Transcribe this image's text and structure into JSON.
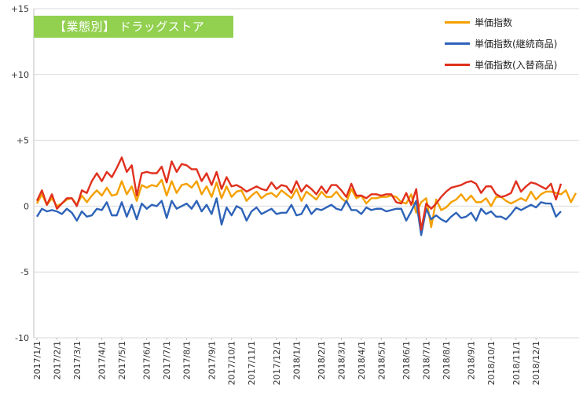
{
  "chart_data": {
    "type": "line",
    "title": "【業態別】 ドラッグストア",
    "xlabel": "",
    "ylabel": "",
    "ylim": [
      -10,
      15
    ],
    "yticks": [
      -10,
      -5,
      0,
      5,
      10,
      15
    ],
    "ytick_labels": [
      "-10",
      "-5",
      "0",
      "+5",
      "+10",
      "+15"
    ],
    "grid": "horizontal",
    "legend_position": "top-right",
    "x_start": "2017/1/1",
    "x_interval": "weekly",
    "xtick_labels": [
      "2017/1/1",
      "2017/2/1",
      "2017/3/1",
      "2017/4/1",
      "2017/5/1",
      "2017/6/1",
      "2017/7/1",
      "2017/8/1",
      "2017/9/1",
      "2017/10/1",
      "2017/11/1",
      "2017/12/1",
      "2018/1/1",
      "2018/2/1",
      "2018/3/1",
      "2018/4/1",
      "2018/5/1",
      "2018/6/1",
      "2018/7/1",
      "2018/8/1",
      "2018/9/1",
      "2018/10/1",
      "2018/11/1",
      "2018/12/1"
    ],
    "series": [
      {
        "name": "単価指数",
        "color": "#f5a000",
        "values": [
          0.2,
          0.9,
          0.1,
          0.6,
          0.0,
          0.2,
          0.5,
          0.6,
          0.1,
          0.8,
          0.3,
          0.8,
          1.2,
          0.8,
          1.4,
          0.8,
          0.9,
          1.9,
          0.9,
          1.5,
          0.4,
          1.6,
          1.4,
          1.6,
          1.5,
          2.0,
          0.8,
          1.9,
          1.0,
          1.6,
          1.7,
          1.4,
          1.9,
          0.9,
          1.5,
          0.7,
          1.8,
          0.6,
          1.5,
          0.7,
          1.1,
          1.2,
          0.4,
          0.8,
          1.1,
          0.6,
          0.9,
          1.0,
          0.7,
          1.2,
          0.9,
          0.6,
          1.3,
          0.4,
          1.1,
          0.8,
          0.5,
          1.1,
          0.7,
          0.7,
          1.1,
          0.6,
          0.3,
          1.3,
          0.6,
          0.8,
          0.2,
          0.6,
          0.6,
          0.7,
          0.7,
          0.8,
          0.7,
          0.3,
          0.2,
          0.9,
          -0.5,
          0.3,
          0.6,
          -1.6,
          0.5,
          -0.3,
          -0.1,
          0.3,
          0.5,
          0.9,
          0.4,
          0.8,
          0.3,
          0.3,
          0.6,
          0.0,
          0.7,
          0.7,
          0.4,
          0.2,
          0.4,
          0.6,
          0.4,
          1.1,
          0.5,
          0.9,
          1.1,
          1.1,
          1.0,
          0.9,
          1.2,
          0.3,
          1.0
        ],
        "dash": ""
      },
      {
        "name": "単価指数(継続商品)",
        "color": "#2e63b8",
        "values": [
          -0.8,
          -0.2,
          -0.4,
          -0.3,
          -0.4,
          -0.6,
          -0.2,
          -0.5,
          -1.1,
          -0.4,
          -0.8,
          -0.7,
          -0.2,
          -0.3,
          0.3,
          -0.7,
          -0.7,
          0.3,
          -0.8,
          0.1,
          -1.0,
          0.2,
          -0.2,
          0.1,
          0.0,
          0.4,
          -0.9,
          0.4,
          -0.2,
          0.0,
          0.2,
          -0.2,
          0.4,
          -0.4,
          0.1,
          -0.6,
          0.6,
          -1.4,
          -0.1,
          -0.7,
          0.0,
          -0.2,
          -1.1,
          -0.4,
          -0.1,
          -0.6,
          -0.4,
          -0.2,
          -0.6,
          -0.5,
          -0.5,
          0.1,
          -0.7,
          -0.6,
          0.1,
          -0.6,
          -0.2,
          -0.3,
          -0.1,
          0.1,
          -0.2,
          -0.3,
          0.4,
          -0.3,
          -0.3,
          -0.6,
          -0.1,
          -0.3,
          -0.2,
          -0.2,
          -0.4,
          -0.3,
          -0.2,
          -0.2,
          -1.1,
          -0.4,
          0.4,
          -2.2,
          -0.2,
          -1.0,
          -0.7,
          -1.0,
          -1.2,
          -0.8,
          -0.5,
          -0.9,
          -0.8,
          -0.5,
          -1.1,
          -0.2,
          -0.6,
          -0.4,
          -0.8,
          -0.8,
          -1.0,
          -0.6,
          -0.1,
          -0.3,
          -0.1,
          0.1,
          -0.1,
          0.3,
          0.2,
          0.2,
          -0.8,
          -0.4
        ],
        "dash": ""
      },
      {
        "name": "単価指数(入替商品)",
        "color": "#e0301e",
        "values": [
          0.4,
          1.2,
          0.1,
          0.9,
          -0.2,
          0.2,
          0.6,
          0.6,
          0.0,
          1.2,
          1.0,
          1.9,
          2.5,
          1.9,
          2.6,
          2.2,
          2.9,
          3.7,
          2.6,
          3.1,
          0.8,
          2.5,
          2.6,
          2.5,
          2.5,
          3.0,
          1.8,
          3.4,
          2.6,
          3.2,
          3.1,
          2.8,
          2.8,
          1.9,
          2.5,
          1.6,
          2.6,
          1.3,
          2.2,
          1.5,
          1.6,
          1.4,
          1.1,
          1.3,
          1.5,
          1.3,
          1.2,
          1.8,
          1.3,
          1.6,
          1.5,
          1.0,
          1.9,
          1.1,
          1.6,
          1.3,
          0.9,
          1.5,
          1.0,
          1.6,
          1.6,
          1.2,
          0.7,
          1.7,
          0.8,
          0.8,
          0.6,
          0.9,
          0.9,
          0.8,
          0.9,
          0.9,
          0.3,
          0.2,
          1.0,
          0.1,
          1.3,
          -1.8,
          0.2,
          -0.2,
          0.2,
          0.7,
          1.1,
          1.4,
          1.5,
          1.6,
          1.8,
          1.9,
          1.7,
          1.0,
          1.5,
          1.5,
          0.9,
          0.7,
          0.8,
          1.0,
          1.9,
          1.1,
          1.5,
          1.8,
          1.7,
          1.5,
          1.3,
          1.7,
          0.5,
          1.7
        ],
        "dash": ""
      }
    ]
  }
}
